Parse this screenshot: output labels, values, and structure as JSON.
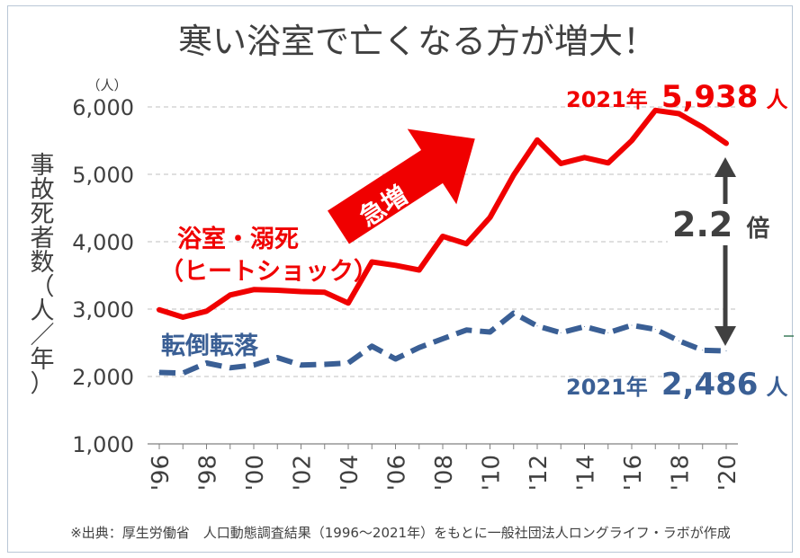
{
  "title": "寒い浴室で亡くなる方が増大！",
  "source": "※出典：厚生労働省　人口動態調査結果（1996〜2021年）をもとに一般社団法人ロングライフ・ラボが作成",
  "annotations": {
    "bath_label_1": "浴室・溺死",
    "bath_label_2": "（ヒートショック）",
    "fall_label": "転倒転落",
    "surge_label": "急増",
    "bath_end_prefix": "2021年",
    "bath_end_value": "5,938",
    "bath_end_suffix": "人",
    "fall_end_prefix": "2021年",
    "fall_end_value": "2,486",
    "fall_end_suffix": "人",
    "ratio_value": "2.2",
    "ratio_suffix": "倍"
  },
  "colors": {
    "bath": "#f00000",
    "fall": "#3a5f95",
    "grid": "#bfbfbf",
    "arrow": "#404040"
  },
  "chart_data": {
    "type": "line",
    "title": "寒い浴室で亡くなる方が増大！",
    "ylabel": "事故死者数（人／年）",
    "yunit": "（人）",
    "ylim": [
      1000,
      6000
    ],
    "yticks": [
      "1,000",
      "2,000",
      "3,000",
      "4,000",
      "5,000",
      "6,000"
    ],
    "ytick_values": [
      1000,
      2000,
      3000,
      4000,
      5000,
      6000
    ],
    "grid": true,
    "x": [
      1996,
      1997,
      1998,
      1999,
      2000,
      2001,
      2002,
      2003,
      2004,
      2005,
      2006,
      2007,
      2008,
      2009,
      2010,
      2011,
      2012,
      2013,
      2014,
      2015,
      2016,
      2017,
      2018,
      2019,
      2020
    ],
    "xtick_labels": [
      "'96",
      "'98",
      "'00",
      "'02",
      "'04",
      "'06",
      "'08",
      "'10",
      "'12",
      "'14",
      "'16",
      "'18",
      "'20"
    ],
    "xtick_years": [
      1996,
      1998,
      2000,
      2002,
      2004,
      2006,
      2008,
      2010,
      2012,
      2014,
      2016,
      2018,
      2020
    ],
    "series": [
      {
        "name": "浴室・溺死（ヒートショック）",
        "style": "solid",
        "values": [
          2990,
          2880,
          2970,
          3210,
          3290,
          3280,
          3260,
          3250,
          3090,
          3700,
          3650,
          3580,
          4080,
          3970,
          4360,
          4990,
          5510,
          5160,
          5250,
          5170,
          5500,
          5950,
          5900,
          5700,
          5460
        ]
      },
      {
        "name": "転倒転落",
        "style": "dashed",
        "values": [
          2060,
          2050,
          2200,
          2130,
          2170,
          2280,
          2170,
          2180,
          2200,
          2450,
          2260,
          2430,
          2560,
          2690,
          2660,
          2940,
          2750,
          2650,
          2740,
          2650,
          2760,
          2700,
          2530,
          2390,
          2380
        ]
      }
    ]
  }
}
